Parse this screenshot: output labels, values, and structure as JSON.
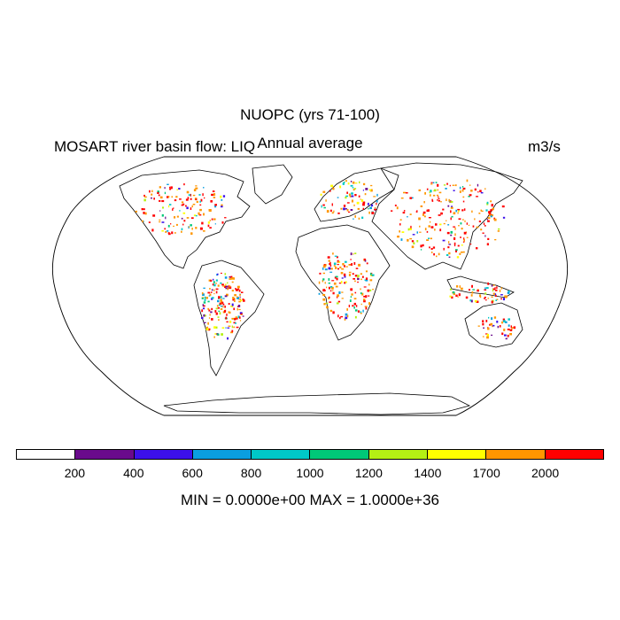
{
  "header": {
    "title": "NUOPC (yrs 71-100)",
    "subtitle": "Annual average",
    "left_label": "MOSART river basin flow: LIQ",
    "units": "m3/s"
  },
  "colorbar": {
    "colors": [
      "#ffffff",
      "#6a0a8c",
      "#3c10ea",
      "#0a9ee0",
      "#00c8c8",
      "#00c878",
      "#b4f014",
      "#ffff00",
      "#ff9600",
      "#ff0000"
    ],
    "tick_labels": [
      "200",
      "400",
      "600",
      "800",
      "1000",
      "1200",
      "1400",
      "1700",
      "2000"
    ]
  },
  "footer": {
    "minmax": "MIN = 0.0000e+00 MAX = 1.0000e+36"
  }
}
